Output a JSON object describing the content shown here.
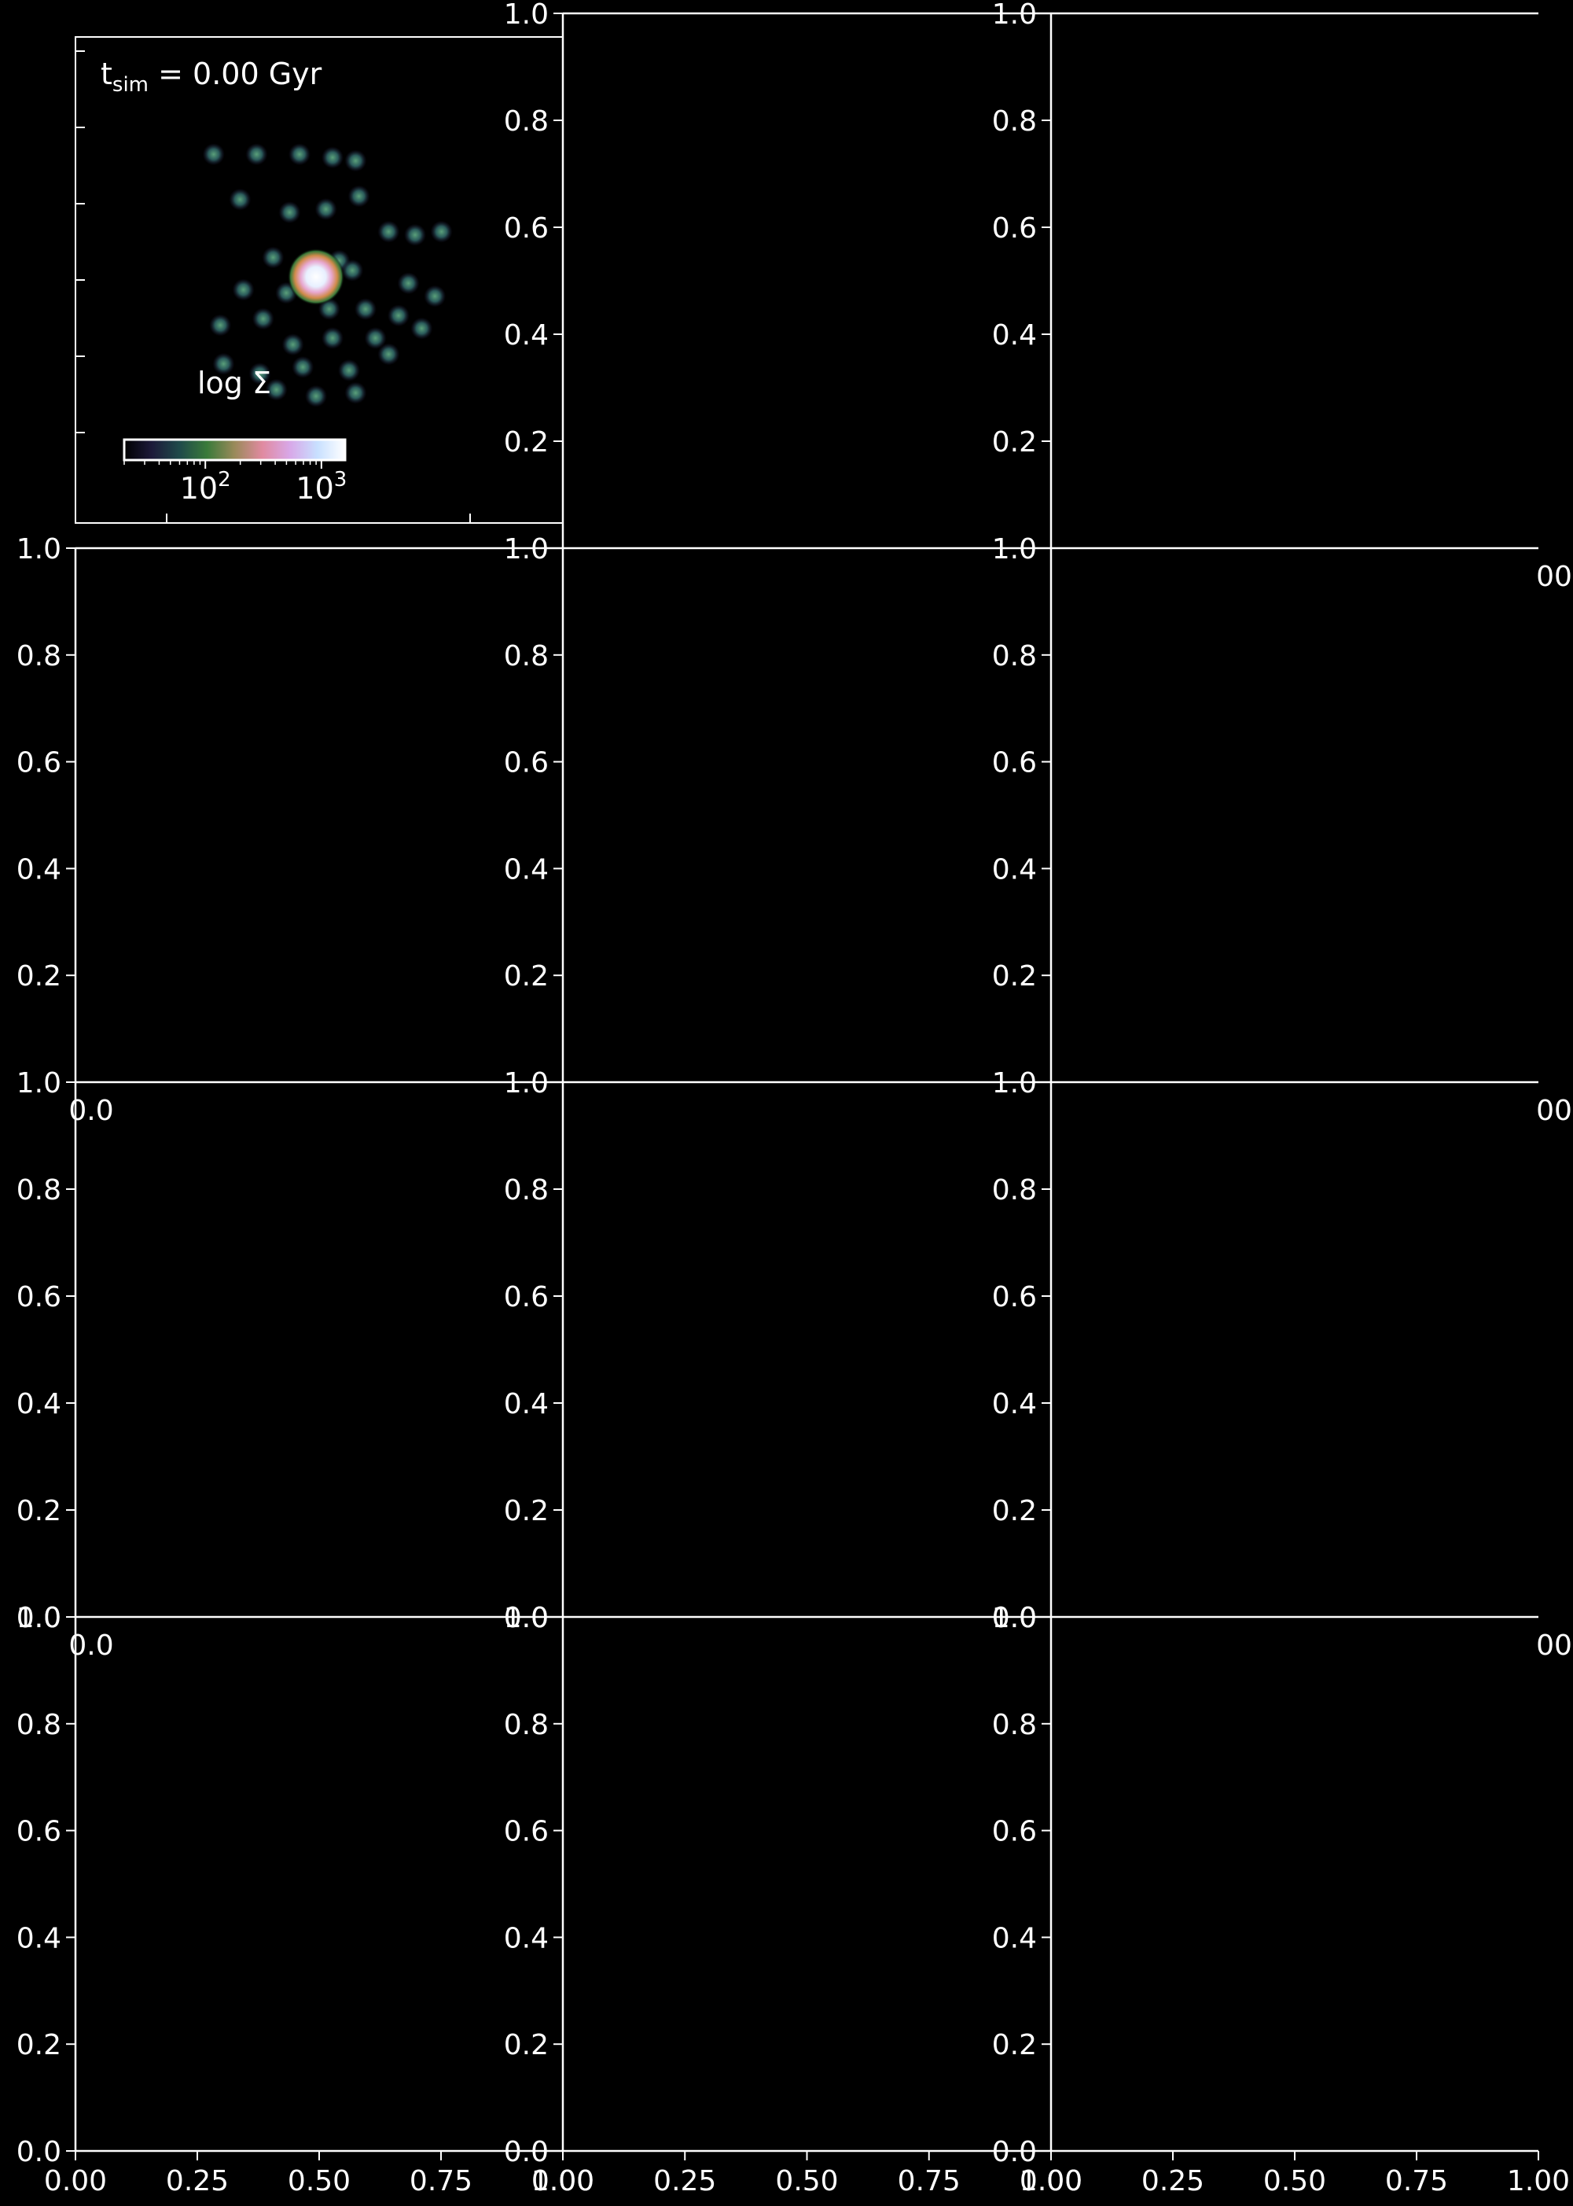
{
  "figure": {
    "background": "#000000",
    "foreground": "#ffffff",
    "colormap": [
      "#000000",
      "#1d1a3a",
      "#1f4a4a",
      "#3a7a3a",
      "#9a8a5a",
      "#e08aa0",
      "#d8a8e8",
      "#c8e0ff",
      "#ffffff"
    ]
  },
  "chart_data": [
    {
      "panel": "row1-col1",
      "type": "heatmap",
      "annotation": {
        "main": "t",
        "sub": "sim",
        "rest": " = 0.00 Gyr"
      },
      "colorbar": {
        "label": "log Σ",
        "scale": "log",
        "ticks": [
          {
            "value": 100,
            "base": "10",
            "exp": "2"
          },
          {
            "value": 1000,
            "base": "10",
            "exp": "3"
          }
        ],
        "range": [
          20,
          1600
        ]
      },
      "image": {
        "description_kind": "surface density map",
        "central_peak": {
          "x": 0.5,
          "y": 0.5,
          "log_sigma": 3.2
        },
        "clumps": [
          [
            0.19,
            0.88
          ],
          [
            0.32,
            0.88
          ],
          [
            0.45,
            0.88
          ],
          [
            0.55,
            0.87
          ],
          [
            0.62,
            0.86
          ],
          [
            0.27,
            0.74
          ],
          [
            0.42,
            0.7
          ],
          [
            0.53,
            0.71
          ],
          [
            0.63,
            0.75
          ],
          [
            0.72,
            0.64
          ],
          [
            0.8,
            0.63
          ],
          [
            0.88,
            0.64
          ],
          [
            0.37,
            0.56
          ],
          [
            0.57,
            0.55
          ],
          [
            0.61,
            0.52
          ],
          [
            0.78,
            0.48
          ],
          [
            0.86,
            0.44
          ],
          [
            0.28,
            0.46
          ],
          [
            0.41,
            0.45
          ],
          [
            0.54,
            0.4
          ],
          [
            0.65,
            0.4
          ],
          [
            0.75,
            0.38
          ],
          [
            0.21,
            0.35
          ],
          [
            0.34,
            0.37
          ],
          [
            0.43,
            0.29
          ],
          [
            0.55,
            0.31
          ],
          [
            0.68,
            0.31
          ],
          [
            0.82,
            0.34
          ],
          [
            0.22,
            0.23
          ],
          [
            0.33,
            0.2
          ],
          [
            0.46,
            0.22
          ],
          [
            0.6,
            0.21
          ],
          [
            0.72,
            0.26
          ],
          [
            0.38,
            0.15
          ],
          [
            0.5,
            0.13
          ],
          [
            0.62,
            0.14
          ]
        ]
      }
    },
    {
      "panel": "row1-col2",
      "type": "scatter",
      "series": [],
      "xlim": [
        0,
        1
      ],
      "ylim": [
        0,
        1
      ],
      "yticks": [
        "0.2",
        "0.4",
        "0.6",
        "0.8",
        "1.0"
      ]
    },
    {
      "panel": "row1-col3",
      "type": "scatter",
      "series": [],
      "xlim": [
        0,
        1
      ],
      "ylim": [
        0,
        1
      ],
      "yticks": [
        "0.2",
        "0.4",
        "0.6",
        "0.8",
        "1.0"
      ],
      "xticks": [
        "00"
      ]
    },
    {
      "panel": "row2-col1",
      "type": "scatter",
      "series": [],
      "xlim": [
        0,
        1
      ],
      "ylim": [
        0,
        1
      ],
      "yticks": [
        "0.2",
        "0.4",
        "0.6",
        "0.8",
        "1.0"
      ],
      "xticks": [
        "0.0"
      ]
    },
    {
      "panel": "row2-col2",
      "type": "scatter",
      "series": [],
      "xlim": [
        0,
        1
      ],
      "ylim": [
        0,
        1
      ],
      "yticks": [
        "0.2",
        "0.4",
        "0.6",
        "0.8",
        "1.0"
      ]
    },
    {
      "panel": "row2-col3",
      "type": "scatter",
      "series": [],
      "xlim": [
        0,
        1
      ],
      "ylim": [
        0,
        1
      ],
      "yticks": [
        "0.2",
        "0.4",
        "0.6",
        "0.8",
        "1.0"
      ],
      "xticks": [
        "00"
      ]
    },
    {
      "panel": "row3-col1",
      "type": "scatter",
      "series": [],
      "xlim": [
        0,
        1
      ],
      "ylim": [
        0,
        1
      ],
      "yticks": [
        "0.0",
        "0.2",
        "0.4",
        "0.6",
        "0.8",
        "1.0"
      ],
      "xticks": [
        "0.0"
      ]
    },
    {
      "panel": "row3-col2",
      "type": "scatter",
      "series": [],
      "xlim": [
        0,
        1
      ],
      "ylim": [
        0,
        1
      ],
      "yticks": [
        "0.0",
        "0.2",
        "0.4",
        "0.6",
        "0.8",
        "1.0"
      ]
    },
    {
      "panel": "row3-col3",
      "type": "scatter",
      "series": [],
      "xlim": [
        0,
        1
      ],
      "ylim": [
        0,
        1
      ],
      "yticks": [
        "0.0",
        "0.2",
        "0.4",
        "0.6",
        "0.8",
        "1.0"
      ],
      "xticks": [
        "00"
      ]
    },
    {
      "panel": "row4-col1",
      "type": "scatter",
      "series": [],
      "xlim": [
        0,
        1
      ],
      "ylim": [
        0,
        1
      ],
      "yticks": [
        "0.0",
        "0.2",
        "0.4",
        "0.6",
        "0.8",
        "1.0"
      ],
      "xticks": [
        "0.00",
        "0.25",
        "0.50",
        "0.75",
        "1.00"
      ]
    },
    {
      "panel": "row4-col2",
      "type": "scatter",
      "series": [],
      "xlim": [
        0,
        1
      ],
      "ylim": [
        0,
        1
      ],
      "yticks": [
        "0.0",
        "0.2",
        "0.4",
        "0.6",
        "0.8",
        "1.0"
      ],
      "xticks": [
        "0.00",
        "0.25",
        "0.50",
        "0.75",
        "1.00"
      ]
    },
    {
      "panel": "row4-col3",
      "type": "scatter",
      "series": [],
      "xlim": [
        0,
        1
      ],
      "ylim": [
        0,
        1
      ],
      "yticks": [
        "0.0",
        "0.2",
        "0.4",
        "0.6",
        "0.8",
        "1.0"
      ],
      "xticks": [
        "0.00",
        "0.25",
        "0.50",
        "0.75",
        "1.00"
      ]
    }
  ]
}
